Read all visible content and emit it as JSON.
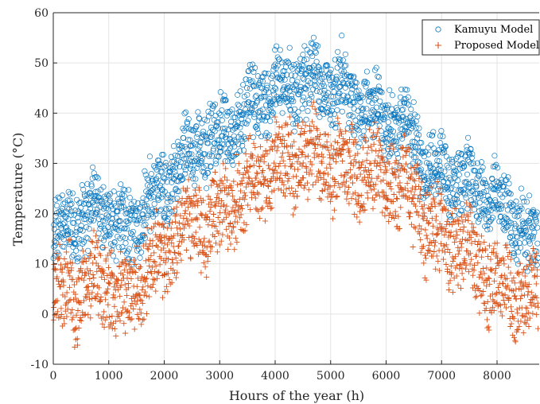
{
  "chart_data": {
    "type": "scatter",
    "xlabel": "Hours of the year (h)",
    "ylabel": "Temperature (°C)",
    "xlim": [
      0,
      8760
    ],
    "ylim": [
      -10,
      60
    ],
    "xticks": [
      0,
      1000,
      2000,
      3000,
      4000,
      5000,
      6000,
      7000,
      8000
    ],
    "yticks": [
      -10,
      0,
      10,
      20,
      30,
      40,
      50,
      60
    ],
    "grid": true,
    "legend_position": "top-right",
    "series": [
      {
        "name": "Kamuyu Model",
        "marker": "circle-open",
        "color": "#0072BD",
        "x": [
          0,
          150,
          300,
          450,
          600,
          750,
          900,
          1050,
          1200,
          1350,
          1500,
          1650,
          1800,
          1950,
          2100,
          2250,
          2400,
          2550,
          2700,
          2850,
          3000,
          3150,
          3300,
          3450,
          3600,
          3750,
          3900,
          4050,
          4200,
          4350,
          4500,
          4650,
          4800,
          4950,
          5100,
          5250,
          5400,
          5550,
          5700,
          5850,
          6000,
          6150,
          6300,
          6450,
          6600,
          6750,
          6900,
          7050,
          7200,
          7350,
          7500,
          7650,
          7800,
          7950,
          8100,
          8250,
          8400,
          8550,
          8700
        ],
        "y": [
          14,
          17,
          18,
          19,
          20,
          21,
          21,
          20,
          17,
          16,
          18,
          21,
          23,
          25,
          27,
          30,
          31,
          33,
          35,
          34,
          35,
          37,
          38,
          40,
          42,
          43,
          44,
          45,
          45,
          46,
          46,
          47,
          46,
          46,
          45,
          44,
          43,
          42,
          41,
          40,
          39,
          38,
          37,
          36,
          33,
          28,
          28,
          28,
          27,
          27,
          26,
          25,
          24,
          23,
          22,
          20,
          18,
          16,
          14
        ]
      },
      {
        "name": "Proposed Model",
        "marker": "plus",
        "color": "#D95319",
        "x": [
          0,
          150,
          300,
          450,
          600,
          750,
          900,
          1050,
          1200,
          1350,
          1500,
          1650,
          1800,
          1950,
          2100,
          2250,
          2400,
          2550,
          2700,
          2850,
          3000,
          3150,
          3300,
          3450,
          3600,
          3750,
          3900,
          4050,
          4200,
          4350,
          4500,
          4650,
          4800,
          4950,
          5100,
          5250,
          5400,
          5550,
          5700,
          5850,
          6000,
          6150,
          6300,
          6450,
          6600,
          6750,
          6900,
          7050,
          7200,
          7350,
          7500,
          7650,
          7800,
          7950,
          8100,
          8250,
          8400,
          8550,
          8700
        ],
        "y": [
          3,
          4,
          5,
          4,
          5,
          6,
          7,
          6,
          2,
          4,
          6,
          8,
          10,
          12,
          14,
          16,
          17,
          19,
          19,
          18,
          20,
          22,
          23,
          24,
          26,
          27,
          29,
          29,
          30,
          31,
          31,
          31,
          31,
          30,
          30,
          29,
          29,
          28,
          28,
          27,
          27,
          26,
          25,
          24,
          22,
          17,
          16,
          15,
          15,
          14,
          12,
          10,
          8,
          6,
          5,
          4,
          4,
          4,
          4
        ]
      }
    ]
  }
}
